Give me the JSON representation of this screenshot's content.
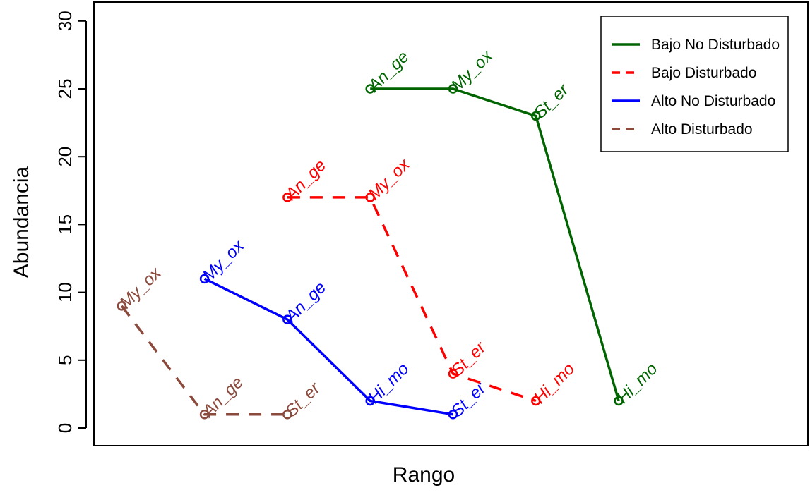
{
  "chart_data": {
    "type": "line",
    "title": "",
    "xlabel": "Rango",
    "ylabel": "Abundancia",
    "ylim": [
      0,
      30
    ],
    "yticks": [
      0,
      5,
      10,
      15,
      20,
      25,
      30
    ],
    "grid": false,
    "legend_position": "top-right",
    "series": [
      {
        "name": "Bajo No Disturbado",
        "color": "#006400",
        "dash": "solid",
        "points": [
          {
            "x": 4,
            "y": 25,
            "label": "An_ge"
          },
          {
            "x": 5,
            "y": 25,
            "label": "My_ox"
          },
          {
            "x": 6,
            "y": 23,
            "label": "St_er"
          },
          {
            "x": 7,
            "y": 2,
            "label": "Hi_mo"
          }
        ]
      },
      {
        "name": "Bajo Disturbado",
        "color": "#ff0000",
        "dash": "dashed",
        "points": [
          {
            "x": 3,
            "y": 17,
            "label": "An_ge"
          },
          {
            "x": 4,
            "y": 17,
            "label": "My_ox"
          },
          {
            "x": 5,
            "y": 4,
            "label": "St_er"
          },
          {
            "x": 6,
            "y": 2,
            "label": "Hi_mo"
          }
        ]
      },
      {
        "name": "Alto No Disturbado",
        "color": "#0000ff",
        "dash": "solid",
        "points": [
          {
            "x": 2,
            "y": 11,
            "label": "My_ox"
          },
          {
            "x": 3,
            "y": 8,
            "label": "An_ge"
          },
          {
            "x": 4,
            "y": 2,
            "label": "Hi_mo"
          },
          {
            "x": 5,
            "y": 1,
            "label": "St_er"
          }
        ]
      },
      {
        "name": "Alto Disturbado",
        "color": "#8b4a3c",
        "dash": "dashed",
        "points": [
          {
            "x": 1,
            "y": 9,
            "label": "My_ox"
          },
          {
            "x": 2,
            "y": 1,
            "label": "An_ge"
          },
          {
            "x": 3,
            "y": 1,
            "label": "St_er"
          }
        ]
      }
    ]
  }
}
